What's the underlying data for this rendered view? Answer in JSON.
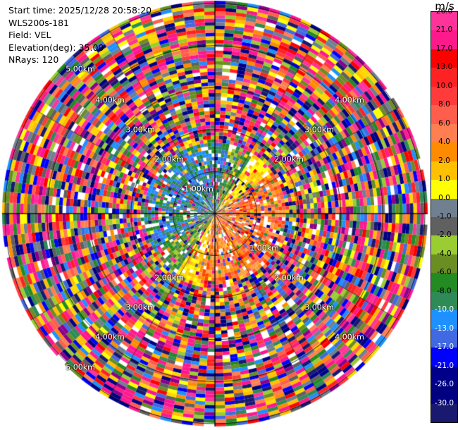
{
  "header": {
    "start_time": "Start time: 2025/12/28 20:58:20",
    "instrument": "WLS200s-181",
    "field": "Field: VEL",
    "elevation": "Elevation(deg): 35.00",
    "nrays": "NRays: 120"
  },
  "range_rings": [
    "1.00km",
    "2.00km",
    "3.00km",
    "4.00km",
    "5.00km"
  ],
  "colorbar": {
    "unit": "m/s",
    "ticks": [
      "26.0",
      "21.0",
      "17.0",
      "13.0",
      "10.0",
      "8.0",
      "6.0",
      "4.0",
      "2.0",
      "1.0",
      "0.0",
      "-1.0",
      "-2.0",
      "-4.0",
      "-6.0",
      "-8.0",
      "-10.0",
      "-13.0",
      "-17.0",
      "-21.0",
      "-26.0",
      "-30.0"
    ],
    "colors": [
      "#ff3399",
      "#ff1a8c",
      "#ff0000",
      "#ff2222",
      "#ff3b3b",
      "#ff5e4d",
      "#ff7f50",
      "#ff8c00",
      "#ffc000",
      "#ffff00",
      "#708090",
      "#606060",
      "#9acd32",
      "#6b8e23",
      "#228b22",
      "#2e8b57",
      "#1e90ff",
      "#4169e1",
      "#0000ff",
      "#00008b",
      "#000080",
      "#191970"
    ]
  }
}
